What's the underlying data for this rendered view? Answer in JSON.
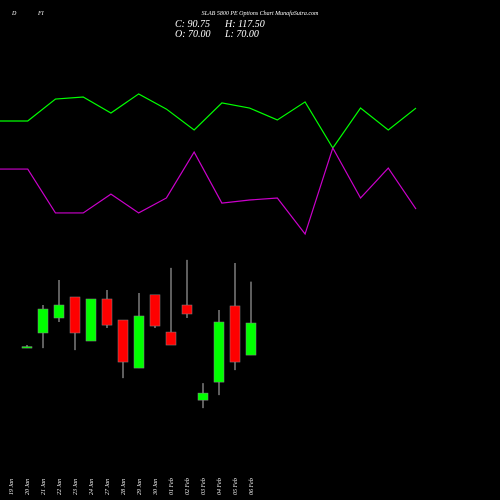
{
  "chart_data": {
    "type": "candlestick",
    "title": "SLAB 5800 PE Options Chart MunafaSutra.com",
    "header_labels": [
      "D",
      "FI"
    ],
    "ohlc_labels": [
      "C: 90.75",
      "H: 117.50",
      "O: 70.00",
      "L: 70.00"
    ],
    "categories": [
      "19 Jan",
      "20 Jan",
      "21 Jan",
      "22 Jan",
      "23 Jan",
      "24 Jan",
      "27 Jan",
      "28 Jan",
      "29 Jan",
      "30 Jan",
      "01 Feb",
      "02 Feb",
      "03 Feb",
      "04 Feb",
      "05 Feb",
      "06 Feb"
    ],
    "open": [
      null,
      75,
      84.3,
      94,
      107.6,
      79.1,
      106.3,
      92.7,
      61.6,
      109,
      84.9,
      102.4,
      40.8,
      52.5,
      101.8,
      70
    ],
    "high": [
      null,
      76.5,
      102.4,
      118.6,
      107.6,
      106.3,
      112.1,
      92.7,
      110.2,
      109,
      126.4,
      131.6,
      51.9,
      99.2,
      129.6,
      117.5
    ],
    "low": [
      null,
      74.5,
      74.5,
      91.4,
      73.2,
      79.1,
      87.5,
      55.1,
      61.6,
      87.5,
      76.5,
      94,
      35.7,
      44.1,
      60.3,
      70
    ],
    "close": [
      null,
      75.5,
      99.8,
      102.4,
      84.3,
      106.3,
      89.4,
      65.5,
      95.3,
      88.8,
      76.5,
      96.6,
      45.4,
      91.4,
      65.5,
      90.75
    ],
    "up_color": "#00ff00",
    "down_color": "#ff0000",
    "ylim": [
      28,
      138
    ],
    "overlay": {
      "type": "line",
      "ylim": [
        0,
        100
      ],
      "series": [
        {
          "color": "#00ff00",
          "values": [
            75.9,
            75.9,
            88.8,
            90,
            80.6,
            91.8,
            82.9,
            70.6,
            86.5,
            83.5,
            76.5,
            87.1,
            60,
            83.5,
            70.6,
            83.5
          ]
        },
        {
          "color": "#cc00cc",
          "values": [
            47.6,
            47.6,
            21.8,
            21.8,
            32.9,
            21.8,
            30.6,
            57.6,
            27.6,
            29.4,
            30.6,
            9.4,
            60,
            30.6,
            48.2,
            24.1
          ]
        }
      ]
    }
  }
}
